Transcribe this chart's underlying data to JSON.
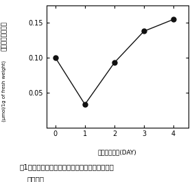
{
  "x": [
    0,
    1,
    2,
    3,
    4
  ],
  "y": [
    0.1,
    0.033,
    0.093,
    0.138,
    0.155
  ],
  "xlim": [
    -0.3,
    4.5
  ],
  "ylim": [
    0.0,
    0.175
  ],
  "yticks": [
    0.05,
    0.1,
    0.15
  ],
  "ytick_labels": [
    "0.05",
    "0.10",
    "0.15"
  ],
  "xticks": [
    0,
    1,
    2,
    3,
    4
  ],
  "xtick_labels": [
    "0",
    "1",
    "2",
    "3",
    "4"
  ],
  "xlabel1": "収穮後日数",
  "xlabel2": "(DAY)",
  "ylabel_line1": "グルタチオン含量",
  "ylabel_line2": "(μmol/1g of fresh weight)",
  "marker_color": "#111111",
  "marker_size": 5,
  "line_color": "#111111",
  "line_style": "-",
  "line_width": 1.0,
  "background_color": "#ffffff",
  "plot_bg": "#ffffff",
  "caption": "図1．コマツナ葉の黄化過程のグルタチオン含量",
  "caption2": "　の変化",
  "caption_fontsize": 7.5,
  "tick_fontsize": 7,
  "label_fontsize": 6.5
}
